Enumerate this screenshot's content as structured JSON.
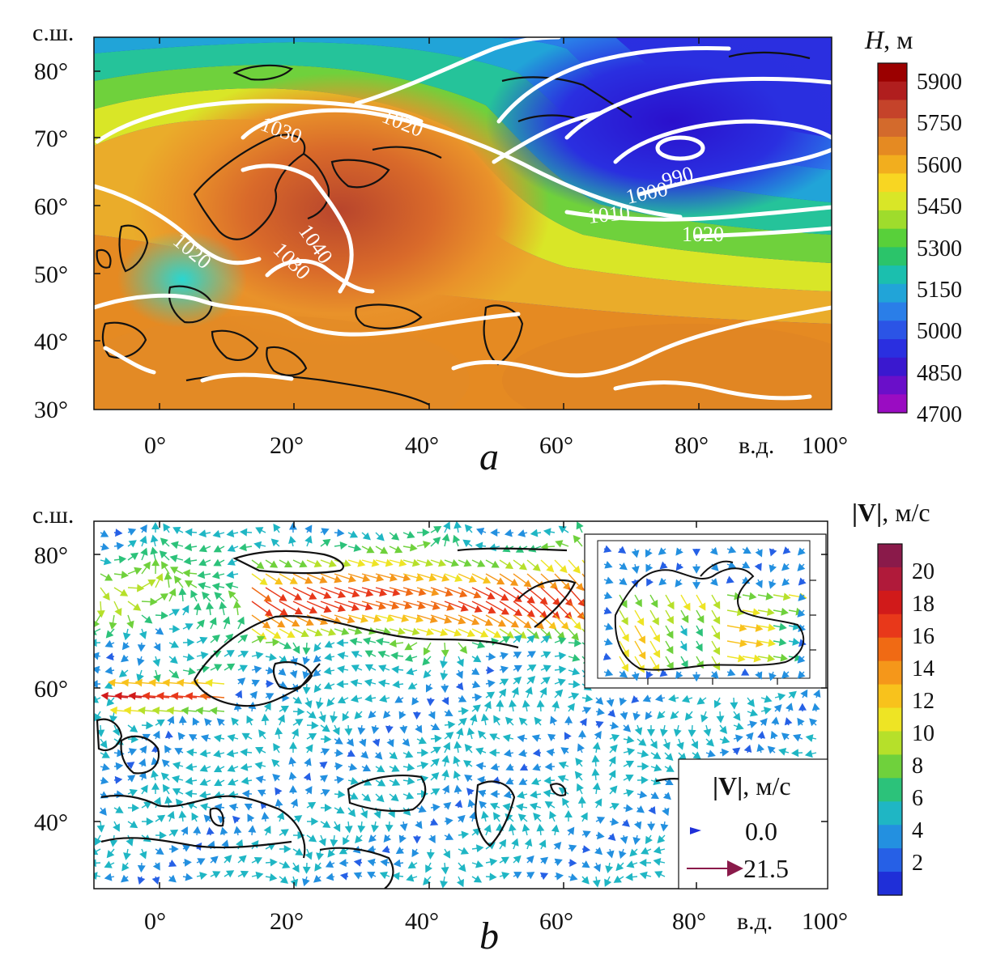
{
  "panel_a": {
    "letter": "a",
    "lat_ticks": [
      "80°",
      "70°",
      "60°",
      "50°",
      "40°",
      "30°"
    ],
    "lat_unit": "с.ш.",
    "lon_ticks": [
      "0°",
      "20°",
      "40°",
      "60°",
      "80°",
      "100°"
    ],
    "lon_unit": "в.д.",
    "colorbar": {
      "title_symbol": "H",
      "title_unit": ", м",
      "labels": [
        "5900",
        "5750",
        "5600",
        "5450",
        "5300",
        "5150",
        "5000",
        "4850",
        "4700"
      ],
      "colors": [
        "#9b0000",
        "#b01e1e",
        "#c5432a",
        "#d36a2c",
        "#e58a22",
        "#f2ae1e",
        "#f8d622",
        "#d9e627",
        "#9fdc2c",
        "#58d03a",
        "#2bc46a",
        "#1bbfae",
        "#21a4d8",
        "#2a7ee8",
        "#2b54e6",
        "#2a2fe0",
        "#3a18cf",
        "#6a0fc9",
        "#9a0cc2"
      ]
    },
    "contour_labels": [
      "1030",
      "1020",
      "990",
      "1000",
      "1010",
      "1020",
      "1020",
      "1040",
      "1030"
    ]
  },
  "panel_b": {
    "letter": "b",
    "lat_ticks": [
      "80°",
      "60°",
      "40°"
    ],
    "lat_unit": "с.ш.",
    "lon_ticks": [
      "0°",
      "20°",
      "40°",
      "60°",
      "80°",
      "100°"
    ],
    "lon_unit": "в.д.",
    "colorbar": {
      "title_symbol": "|V|",
      "title_unit": ", м/с",
      "labels": [
        "20",
        "18",
        "16",
        "14",
        "12",
        "10",
        "8",
        "6",
        "4",
        "2"
      ],
      "colors": [
        "#8a1a4a",
        "#b01a3a",
        "#d11a1a",
        "#e8381a",
        "#f06a14",
        "#f5971a",
        "#f8c21c",
        "#eee424",
        "#b6e02a",
        "#6fd13c",
        "#2cc27a",
        "#1fb6c4",
        "#2390e0",
        "#2660e6",
        "#1f2fd8"
      ]
    },
    "legend": {
      "title_symbol": "|V|",
      "title_unit": ", м/с",
      "min_value": "0.0",
      "max_value": "21.5"
    }
  }
}
